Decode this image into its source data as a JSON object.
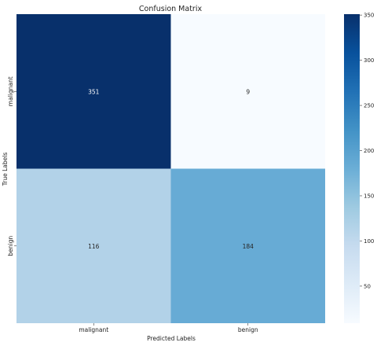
{
  "chart_data": {
    "type": "heatmap",
    "title": "Confusion Matrix",
    "xlabel": "Predicted Labels",
    "ylabel": "True Labels",
    "x_categories": [
      "malignant",
      "benign"
    ],
    "y_categories": [
      "malignant",
      "benign"
    ],
    "values": [
      [
        351,
        9
      ],
      [
        116,
        184
      ]
    ],
    "colormap": "Blues",
    "color_range": [
      9,
      351
    ],
    "colorbar_ticks": [
      50,
      100,
      150,
      200,
      250,
      300,
      350
    ],
    "grid": false
  }
}
